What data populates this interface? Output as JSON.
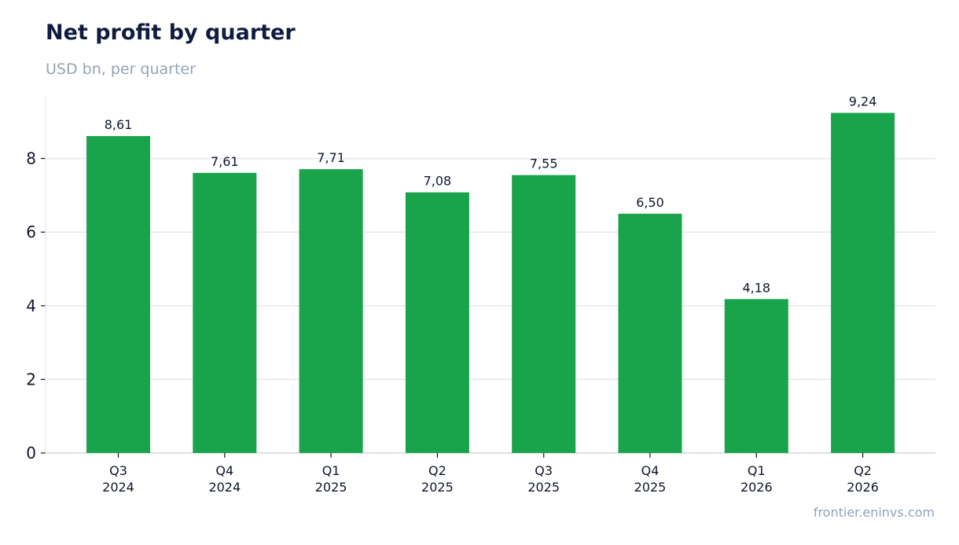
{
  "header": {
    "title": "Net profit by quarter",
    "subtitle": "USD bn, per quarter"
  },
  "footer": {
    "source": "frontier.eninvs.com"
  },
  "colors": {
    "bar": "#19a34a",
    "grid": "#e5e7eb",
    "axis": "#d1d5db",
    "text": "#0f172a"
  },
  "chart_data": {
    "type": "bar",
    "categories": [
      "Q3 2024",
      "Q4 2024",
      "Q1 2025",
      "Q2 2025",
      "Q3 2025",
      "Q4 2025",
      "Q1 2026",
      "Q2 2026"
    ],
    "category_lines": [
      [
        "Q3",
        "2024"
      ],
      [
        "Q4",
        "2024"
      ],
      [
        "Q1",
        "2025"
      ],
      [
        "Q2",
        "2025"
      ],
      [
        "Q3",
        "2025"
      ],
      [
        "Q4",
        "2025"
      ],
      [
        "Q1",
        "2026"
      ],
      [
        "Q2",
        "2026"
      ]
    ],
    "values": [
      8.61,
      7.61,
      7.71,
      7.08,
      7.55,
      6.5,
      4.18,
      9.24
    ],
    "data_labels": [
      "8,61",
      "7,61",
      "7,71",
      "7,08",
      "7,55",
      "6,50",
      "4,18",
      "9,24"
    ],
    "title": "Net profit by quarter",
    "subtitle": "USD bn, per quarter",
    "xlabel": "",
    "ylabel": "",
    "ylim": [
      0,
      9.7
    ],
    "yticks": [
      0,
      2,
      4,
      6,
      8
    ],
    "grid": true
  }
}
